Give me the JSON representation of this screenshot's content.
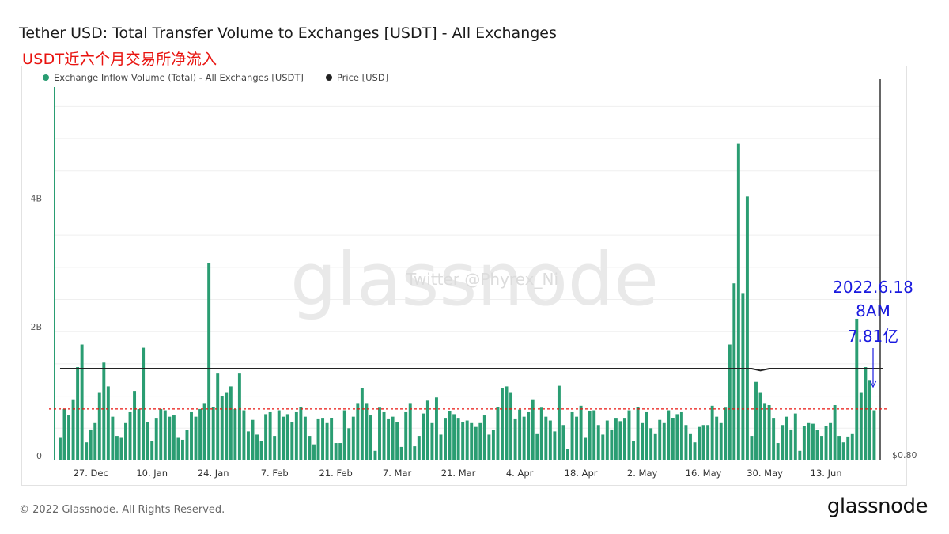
{
  "header": {
    "title": "Tether USD: Total Transfer Volume to Exchanges [USDT] - All Exchanges",
    "subtitle": "USDT近六个月交易所净流入"
  },
  "legend": [
    {
      "label": "Exchange Inflow Volume (Total) - All Exchanges [USDT]",
      "color": "#2a9d72"
    },
    {
      "label": "Price [USD]",
      "color": "#222222"
    }
  ],
  "watermark": {
    "logo_text": "glassnode",
    "twitter_text": "Twitter @Phyrex_Ni"
  },
  "annotation": {
    "lines": [
      "2022.6.18",
      "8AM",
      "7.81亿"
    ],
    "color": "#1a1adf"
  },
  "footer": {
    "copyright": "© 2022 Glassnode. All Rights Reserved.",
    "logo": "glassnode"
  },
  "chart_data": {
    "type": "bar",
    "start_date": "2021-12-20",
    "x_tick_labels": [
      "27. Dec",
      "10. Jan",
      "24. Jan",
      "7. Feb",
      "21. Feb",
      "7. Mar",
      "21. Mar",
      "4. Apr",
      "18. Apr",
      "2. May",
      "16. May",
      "30. May",
      "13. Jun"
    ],
    "y_tick_labels": [
      "0",
      "2B",
      "4B"
    ],
    "ylim": [
      0,
      5.8
    ],
    "y_right_label": "$0.80",
    "series": [
      {
        "name": "Exchange Inflow Volume (Total) - All Exchanges [USDT]",
        "type": "bar",
        "color": "#2a9d72",
        "values": [
          0.35,
          0.8,
          0.7,
          0.95,
          1.45,
          1.8,
          0.28,
          0.48,
          0.58,
          1.05,
          1.52,
          1.15,
          0.68,
          0.38,
          0.35,
          0.58,
          0.75,
          1.08,
          0.8,
          1.75,
          0.6,
          0.3,
          0.65,
          0.8,
          0.78,
          0.68,
          0.7,
          0.35,
          0.32,
          0.47,
          0.75,
          0.68,
          0.8,
          0.88,
          3.07,
          0.83,
          1.35,
          1.0,
          1.05,
          1.15,
          0.8,
          1.35,
          0.78,
          0.45,
          0.63,
          0.4,
          0.3,
          0.72,
          0.75,
          0.38,
          0.78,
          0.68,
          0.72,
          0.6,
          0.75,
          0.83,
          0.68,
          0.38,
          0.25,
          0.64,
          0.65,
          0.58,
          0.66,
          0.27,
          0.27,
          0.78,
          0.5,
          0.68,
          0.88,
          1.12,
          0.88,
          0.7,
          0.15,
          0.82,
          0.75,
          0.64,
          0.68,
          0.6,
          0.21,
          0.75,
          0.88,
          0.22,
          0.38,
          0.73,
          0.93,
          0.58,
          0.98,
          0.4,
          0.65,
          0.77,
          0.72,
          0.65,
          0.6,
          0.62,
          0.58,
          0.52,
          0.58,
          0.7,
          0.4,
          0.47,
          0.83,
          1.12,
          1.15,
          1.05,
          0.64,
          0.79,
          0.68,
          0.75,
          0.95,
          0.42,
          0.82,
          0.68,
          0.62,
          0.45,
          1.16,
          0.55,
          0.18,
          0.75,
          0.68,
          0.85,
          0.35,
          0.77,
          0.78,
          0.55,
          0.4,
          0.62,
          0.48,
          0.65,
          0.61,
          0.65,
          0.78,
          0.3,
          0.83,
          0.58,
          0.75,
          0.5,
          0.42,
          0.63,
          0.58,
          0.78,
          0.66,
          0.72,
          0.75,
          0.55,
          0.42,
          0.28,
          0.52,
          0.55,
          0.55,
          0.85,
          0.68,
          0.58,
          0.82,
          1.8,
          2.75,
          4.92,
          2.6,
          4.1,
          0.38,
          1.22,
          1.05,
          0.88,
          0.86,
          0.65,
          0.27,
          0.55,
          0.68,
          0.48,
          0.73,
          0.15,
          0.53,
          0.58,
          0.57,
          0.47,
          0.38,
          0.54,
          0.58,
          0.86,
          0.38,
          0.28,
          0.37,
          0.42,
          2.2,
          1.05,
          1.45,
          1.25,
          0.78
        ]
      },
      {
        "name": "Price [USD]",
        "type": "line",
        "color": "#222222",
        "values": [
          1.0,
          1.0,
          1.0,
          1.0,
          1.0,
          1.0,
          1.0,
          1.0,
          1.0,
          1.0,
          1.0,
          1.0,
          1.0,
          1.0,
          1.0,
          1.0,
          1.0,
          1.0,
          1.0,
          1.0,
          1.0,
          1.0,
          1.0,
          1.0,
          1.0,
          1.0,
          1.0,
          1.0,
          1.0,
          1.0,
          1.0,
          1.0,
          1.0,
          1.0,
          1.0,
          1.0,
          1.0,
          1.0,
          1.0,
          1.0,
          1.0,
          1.0,
          1.0,
          1.0,
          1.0,
          1.0,
          1.0,
          1.0,
          1.0,
          1.0,
          1.0,
          1.0,
          1.0,
          1.0,
          1.0,
          1.0,
          1.0,
          1.0,
          1.0,
          1.0,
          1.0,
          1.0,
          1.0,
          1.0,
          1.0,
          1.0,
          1.0,
          1.0,
          1.0,
          1.0,
          1.0,
          1.0,
          1.0,
          1.0,
          1.0,
          1.0,
          1.0,
          1.0,
          1.0,
          1.0,
          1.0,
          1.0,
          1.0,
          1.0,
          1.0,
          1.0,
          1.0,
          1.0,
          1.0,
          1.0,
          1.0,
          1.0,
          1.0,
          1.0,
          1.0,
          1.0,
          1.0,
          1.0,
          1.0,
          1.0,
          1.0,
          1.0,
          1.0,
          1.0,
          1.0,
          1.0,
          1.0,
          1.0,
          1.0,
          1.0,
          1.0,
          1.0,
          1.0,
          1.0,
          1.0,
          1.0,
          1.0,
          1.0,
          1.0,
          1.0,
          1.0,
          1.0,
          1.0,
          1.0,
          1.0,
          1.0,
          1.0,
          1.0,
          1.0,
          1.0,
          1.0,
          1.0,
          1.0,
          1.0,
          1.0,
          1.0,
          1.0,
          1.0,
          1.0,
          1.0,
          1.0,
          1.0,
          1.0,
          1.0,
          1.0,
          1.0,
          1.0,
          1.0,
          1.0,
          1.0,
          1.0,
          1.0,
          1.0,
          1.0,
          1.0,
          1.0,
          1.0,
          1.0,
          1.0,
          0.998,
          0.996,
          0.998,
          1.0,
          1.0,
          1.0,
          1.0,
          1.0,
          1.0,
          1.0,
          1.0,
          1.0,
          1.0,
          1.0,
          1.0,
          1.0,
          1.0,
          1.0,
          1.0,
          1.0,
          1.0,
          1.0,
          1.0,
          1.0,
          1.0,
          1.0,
          1.0,
          1.0,
          1.0,
          1.0
        ]
      }
    ],
    "reference_line": {
      "value": 0.8,
      "style": "dashed",
      "color": "#e8130f"
    },
    "grid": true,
    "legend_position": "top-left"
  }
}
